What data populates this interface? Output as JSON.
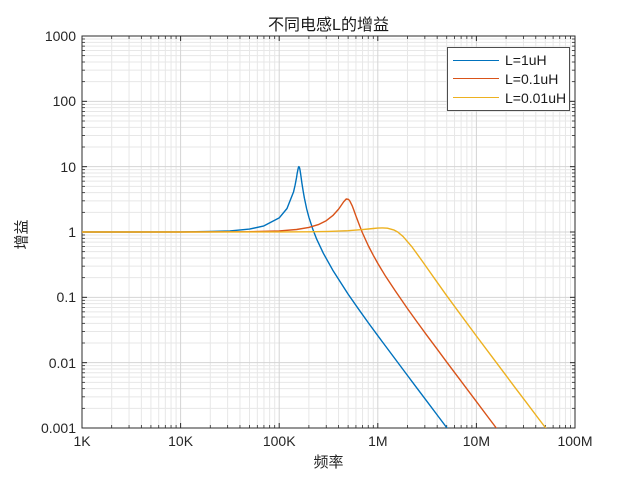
{
  "figure": {
    "background": "#ffffff"
  },
  "style": {
    "axis_color": "#2b2b2b",
    "tick_color": "#2b2b2b",
    "grid_major_color": "#d4d4d4",
    "grid_minor_color": "#e7e7e7",
    "text_color": "#262626",
    "legend_border_color": "#4d4d4d"
  },
  "chart_data": {
    "type": "line",
    "title": "不同电感L的增益",
    "xlabel": "频率",
    "ylabel": "增益",
    "x_scale": "log",
    "y_scale": "log",
    "xlim": [
      1000,
      100000000
    ],
    "ylim": [
      0.001,
      1000
    ],
    "grid": true,
    "minor_grid": true,
    "x_ticks": [
      {
        "value": 1000,
        "label": "1K"
      },
      {
        "value": 10000,
        "label": "10K"
      },
      {
        "value": 100000,
        "label": "100K"
      },
      {
        "value": 1000000,
        "label": "1M"
      },
      {
        "value": 10000000,
        "label": "10M"
      },
      {
        "value": 100000000,
        "label": "100M"
      }
    ],
    "y_ticks": [
      {
        "value": 1000,
        "label": "1000"
      },
      {
        "value": 100,
        "label": "100"
      },
      {
        "value": 10,
        "label": "10"
      },
      {
        "value": 1,
        "label": "1"
      },
      {
        "value": 0.1,
        "label": "0.1"
      },
      {
        "value": 0.01,
        "label": "0.01"
      },
      {
        "value": 0.001,
        "label": "0.001"
      }
    ],
    "legend": {
      "position": "top-right"
    },
    "series": [
      {
        "name": "L=1uH",
        "color": "#0072BD",
        "points": [
          [
            1000,
            1.0
          ],
          [
            3000,
            1.0
          ],
          [
            10000,
            1.004
          ],
          [
            20000,
            1.016
          ],
          [
            31600,
            1.041
          ],
          [
            50000,
            1.109
          ],
          [
            70000,
            1.239
          ],
          [
            100000,
            1.646
          ],
          [
            120000,
            2.289
          ],
          [
            140000,
            4.144
          ],
          [
            145000,
            5.22
          ],
          [
            150000,
            6.9
          ],
          [
            152000,
            7.78
          ],
          [
            155000,
            9.13
          ],
          [
            157000,
            9.82
          ],
          [
            158600,
            10.01
          ],
          [
            161000,
            9.58
          ],
          [
            163000,
            8.73
          ],
          [
            166000,
            7.26
          ],
          [
            170000,
            5.6
          ],
          [
            175000,
            4.2
          ],
          [
            180000,
            3.3
          ],
          [
            190000,
            2.25
          ],
          [
            200000,
            1.678
          ],
          [
            220000,
            1.081
          ],
          [
            240000,
            0.777
          ],
          [
            280000,
            0.474
          ],
          [
            350000,
            0.26
          ],
          [
            500000,
            0.112
          ],
          [
            630000,
            0.068
          ],
          [
            800000,
            0.0411
          ],
          [
            1000000,
            0.0259
          ],
          [
            1400000,
            0.0131
          ],
          [
            2000000,
            0.00636
          ],
          [
            2500000,
            0.00406
          ],
          [
            3160000,
            0.00254
          ],
          [
            4000000,
            0.00158
          ],
          [
            5030000,
            0.001
          ],
          [
            6000000,
            0.0007
          ]
        ]
      },
      {
        "name": "L=0.1uH",
        "color": "#D95319",
        "points": [
          [
            1000,
            1.0
          ],
          [
            10000,
            1.0
          ],
          [
            50000,
            1.01
          ],
          [
            100000,
            1.041
          ],
          [
            150000,
            1.092
          ],
          [
            200000,
            1.175
          ],
          [
            250000,
            1.3
          ],
          [
            300000,
            1.49
          ],
          [
            350000,
            1.783
          ],
          [
            400000,
            2.245
          ],
          [
            420000,
            2.489
          ],
          [
            450000,
            2.888
          ],
          [
            478000,
            3.202
          ],
          [
            503000,
            3.162
          ],
          [
            520000,
            2.994
          ],
          [
            550000,
            2.518
          ],
          [
            570000,
            2.186
          ],
          [
            600000,
            1.765
          ],
          [
            650000,
            1.274
          ],
          [
            700000,
            0.966
          ],
          [
            800000,
            0.621
          ],
          [
            900000,
            0.44
          ],
          [
            1000000,
            0.331
          ],
          [
            1200000,
            0.21
          ],
          [
            1500000,
            0.126
          ],
          [
            2000000,
            0.0673
          ],
          [
            2500000,
            0.0421
          ],
          [
            3160000,
            0.0259
          ],
          [
            4000000,
            0.0161
          ],
          [
            5000000,
            0.0102
          ],
          [
            7000000,
            0.0052
          ],
          [
            10000000,
            0.00254
          ],
          [
            13000000,
            0.0015
          ],
          [
            15900000,
            0.001
          ],
          [
            20000000,
            0.00063
          ]
        ]
      },
      {
        "name": "L=0.01uH",
        "color": "#EDB120",
        "points": [
          [
            1000,
            1.0
          ],
          [
            10000,
            1.0
          ],
          [
            100000,
            1.002
          ],
          [
            200000,
            1.008
          ],
          [
            316000,
            1.02
          ],
          [
            500000,
            1.048
          ],
          [
            700000,
            1.089
          ],
          [
            800000,
            1.11
          ],
          [
            900000,
            1.131
          ],
          [
            1000000,
            1.146
          ],
          [
            1120000,
            1.155
          ],
          [
            1250000,
            1.144
          ],
          [
            1450000,
            1.078
          ],
          [
            1590000,
            1.0
          ],
          [
            1800000,
            0.857
          ],
          [
            2200000,
            0.603
          ],
          [
            2800000,
            0.365
          ],
          [
            3160000,
            0.281
          ],
          [
            4000000,
            0.17
          ],
          [
            5000000,
            0.106
          ],
          [
            7000000,
            0.053
          ],
          [
            10000000,
            0.0256
          ],
          [
            14000000,
            0.013
          ],
          [
            20000000,
            0.00634
          ],
          [
            25000000,
            0.00405
          ],
          [
            31600000,
            0.00254
          ],
          [
            40000000,
            0.00158
          ],
          [
            50500000,
            0.001
          ],
          [
            60000000,
            0.0007
          ]
        ]
      }
    ]
  }
}
